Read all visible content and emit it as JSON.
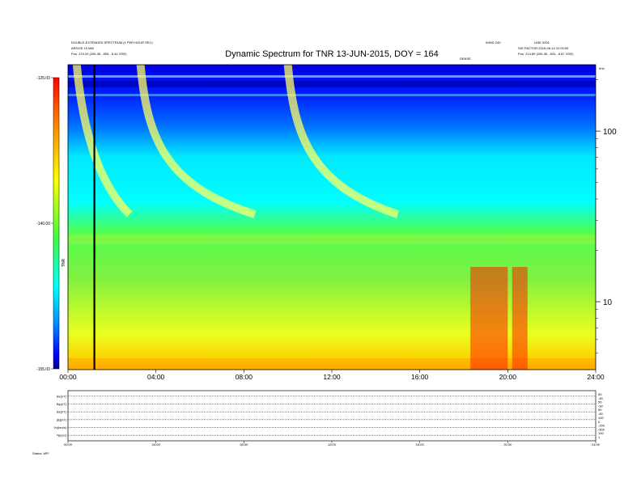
{
  "header": {
    "left_line1": "DOUBLE-EXTENDED SPECTRUM (1 PER HOUR SEC)",
    "left_line2": "ARGOS 19 MM",
    "left_line3": "Pos. 219.03 (205.35, -559, -5.44 GSE)",
    "right_line1": "LINE 0001",
    "right_line2": "SIG FACTOR 2015-06-14 12:00:00",
    "right_line3": "Pos. 214.89 (205.35, -520, -5.87 GSE)",
    "center_tag": "WIND 240",
    "tag_top": "DENSE"
  },
  "chart_data": {
    "type": "heatmap",
    "title": "Dynamic Spectrum for TNR 13-JUN-2015, DOY = 164",
    "x_tick_labels": [
      "00:00",
      "04:00",
      "08:00",
      "12:00",
      "16:00",
      "20:00",
      "24:00"
    ],
    "x_range_hours": [
      0,
      24
    ],
    "y_right_tick_labels": [
      "100",
      "10"
    ],
    "y_right_tick_values_khz": [
      100,
      10
    ],
    "y_right_range_khz": [
      4,
      245
    ],
    "y_right_scale": "log",
    "y_right_unit_label": "kHz",
    "colorbar": {
      "tick_labels": [
        "-125.00",
        "-140.00",
        "-155.00"
      ],
      "range": [
        -155,
        -125
      ],
      "label": "TNR",
      "colors": [
        "#000090",
        "#0000ff",
        "#0088ff",
        "#00ffff",
        "#40ff40",
        "#ffff00",
        "#ff8000",
        "#ff0000",
        "#900000"
      ]
    },
    "annotations": {
      "vertical_line_hour": 1.2,
      "bursts": [
        {
          "start_hour": 0.4,
          "end_hour": 2.8
        },
        {
          "start_hour": 3.3,
          "end_hour": 8.5
        },
        {
          "start_hour": 10.0,
          "end_hour": 15.0
        }
      ],
      "red_intervals_hours": [
        [
          18.3,
          20.0
        ],
        [
          20.2,
          20.9
        ]
      ]
    },
    "grid": false
  },
  "bottom_panel": {
    "left_labels": [
      "Bx(nT)",
      "By(nT)",
      "Bz(nT)",
      "|B|(nT)",
      "Vx(km/s)",
      "Np(cc)"
    ],
    "right_labels": [
      [
        "50",
        "-50"
      ],
      [
        "50",
        "-50"
      ],
      [
        "50",
        "-50"
      ],
      [
        "100",
        "0"
      ],
      [
        "-200",
        "-600"
      ],
      [
        "100",
        "1"
      ]
    ],
    "x_tick_labels": [
      "00:00",
      "04:00",
      "08:00",
      "12:00",
      "16:00",
      "20:00",
      "24:00"
    ],
    "footer_left": "Status: MFI"
  }
}
